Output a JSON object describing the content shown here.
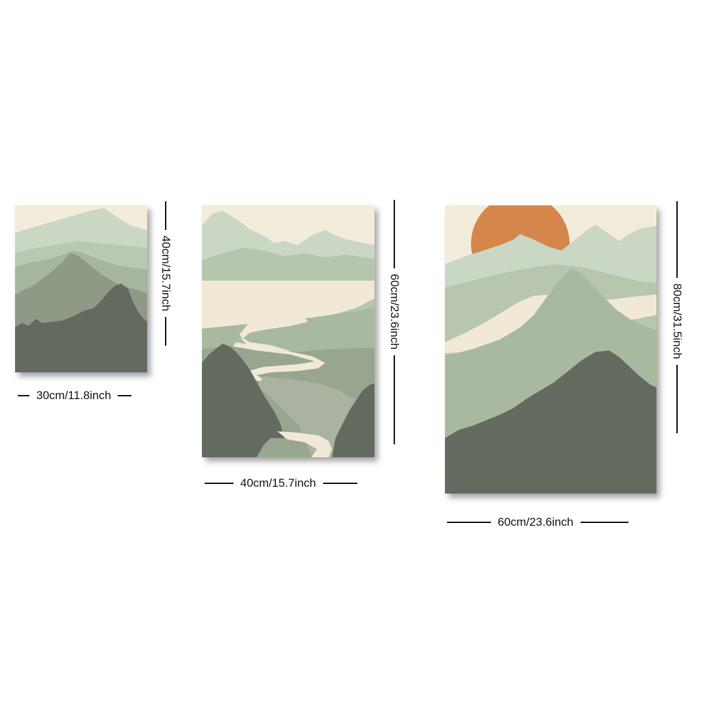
{
  "panels": {
    "small": {
      "width_label": "30cm/11.8inch",
      "height_label": "40cm/15.7inch"
    },
    "medium": {
      "width_label": "40cm/15.7inch",
      "height_label": "60cm/23.6inch"
    },
    "large": {
      "width_label": "60cm/23.6inch",
      "height_label": "80cm/31.5inch"
    }
  },
  "colors": {
    "sky": "#f4ecda",
    "mist_light": "#c9d7c4",
    "sage": "#a9b99f",
    "sage_mid": "#8e9a86",
    "forest_dark": "#636b60",
    "river": "#f1e9d6",
    "sun": "#d4864b"
  }
}
